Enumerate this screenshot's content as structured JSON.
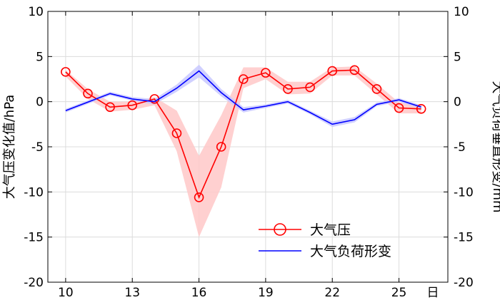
{
  "chart_data": {
    "type": "line",
    "ylabel_left": "大气压变化值/hPa",
    "ylabel_right": "大气负荷垂直形变/mm",
    "x_unit_label": "日",
    "xlim": [
      9.2,
      27.2
    ],
    "ylim_left": [
      -20,
      10
    ],
    "ylim_right": [
      -20,
      10
    ],
    "x_ticks": [
      10,
      13,
      16,
      19,
      22,
      25
    ],
    "y_ticks": [
      -20,
      -15,
      -10,
      -5,
      0,
      5,
      10
    ],
    "grid": true,
    "legend_position": "bottom-right",
    "series": [
      {
        "name": "大气压",
        "axis": "left",
        "color": "#ff0000",
        "marker": "circle",
        "x": [
          10,
          11,
          12,
          13,
          14,
          15,
          16,
          17,
          18,
          19,
          20,
          21,
          22,
          23,
          24,
          25,
          26
        ],
        "values": [
          3.3,
          0.9,
          -0.6,
          -0.4,
          0.3,
          -3.5,
          -10.6,
          -5.0,
          2.5,
          3.2,
          1.4,
          1.6,
          3.4,
          3.5,
          1.4,
          -0.7,
          -0.8
        ],
        "band_upper": [
          3.5,
          1.4,
          0.0,
          0.0,
          0.5,
          -1.0,
          -6.0,
          -1.5,
          3.8,
          3.8,
          2.2,
          2.2,
          3.8,
          3.9,
          2.0,
          -0.1,
          -0.3
        ],
        "band_lower": [
          2.8,
          0.3,
          -1.1,
          -0.9,
          -0.4,
          -5.5,
          -15.0,
          -9.5,
          1.5,
          2.5,
          0.8,
          0.9,
          2.9,
          2.9,
          0.8,
          -1.3,
          -1.3
        ],
        "band_color": "#ffc8c8"
      },
      {
        "name": "大气负荷形变",
        "axis": "right",
        "color": "#0000ff",
        "marker": "none",
        "x": [
          10,
          12,
          13,
          14,
          15,
          16,
          17,
          18,
          19,
          20,
          21,
          22,
          23,
          24,
          25,
          26
        ],
        "values": [
          -1.0,
          0.9,
          0.3,
          0.0,
          1.5,
          3.4,
          1.0,
          -0.9,
          -0.5,
          0.0,
          -1.2,
          -2.5,
          -2.0,
          -0.3,
          0.2,
          -0.6
        ],
        "band_upper": [
          -0.8,
          1.1,
          0.5,
          0.3,
          1.9,
          4.1,
          1.4,
          -0.6,
          -0.3,
          0.2,
          -1.0,
          -2.2,
          -1.7,
          -0.1,
          0.4,
          -0.4
        ],
        "band_lower": [
          -1.2,
          0.7,
          0.1,
          -0.3,
          1.1,
          2.7,
          0.6,
          -1.2,
          -0.7,
          -0.2,
          -1.4,
          -2.8,
          -2.3,
          -0.5,
          0.0,
          -0.8
        ],
        "band_color": "#c8c8ff"
      }
    ]
  }
}
